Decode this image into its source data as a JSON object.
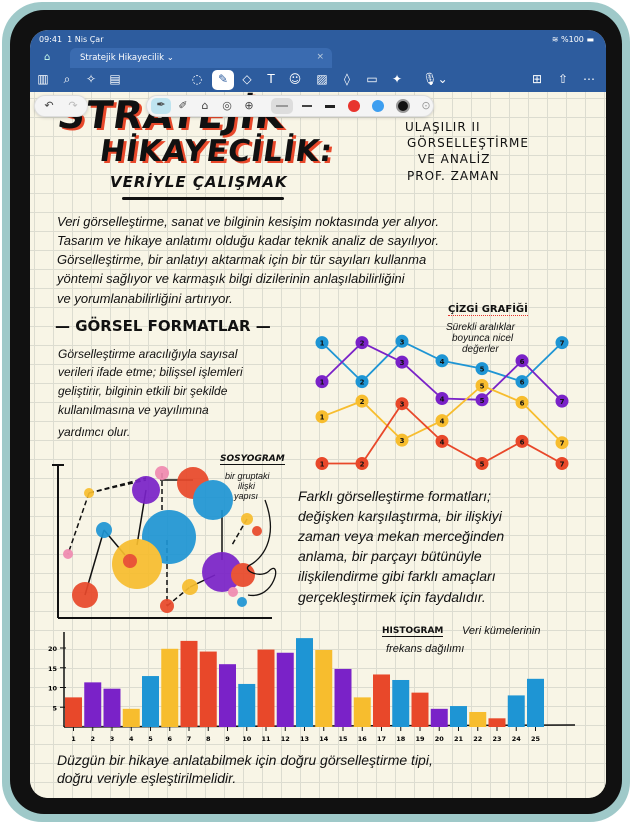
{
  "status": {
    "time": "09:41",
    "date": "1 Nis Çar",
    "battery": "%100"
  },
  "tab": {
    "title": "Stratejik Hikayecilik ⌄",
    "close": "×"
  },
  "toolbar_icons": [
    "sidebar-icon",
    "search-icon",
    "magic-icon",
    "document-icon",
    "lasso-icon",
    "pen-icon",
    "eraser-icon",
    "text-icon",
    "sticker-icon",
    "image-icon",
    "shapes-icon",
    "note-icon",
    "laser-icon",
    "microphone-icon",
    "add-page-icon",
    "share-icon",
    "more-icon"
  ],
  "pen_tools": {
    "colors": [
      "#e8342e",
      "#3d9ef0",
      "#111111"
    ],
    "tools": [
      "fountain-pen-icon",
      "ball-pen-icon",
      "highlighter-icon",
      "brush-icon",
      "shape-pen-icon"
    ]
  },
  "note": {
    "title1": "STRATEJİK",
    "title2": "HİKAYECİLİK:",
    "subtitle": "VERİYLE ÇALIŞMAK",
    "course": [
      "ULAŞILIR II",
      "GÖRSELLEŞTİRME",
      "VE ANALİZ",
      "PROF. ZAMAN"
    ],
    "intro": [
      "Veri görselleştirme, sanat ve bilginin kesişim noktasında yer alıyor.",
      "Tasarım ve hikaye anlatımı olduğu kadar teknik analiz de sayılıyor.",
      "Görselleştirme, bir anlatıyı aktarmak için bir tür sayıları kullanma",
      "yöntemi sağlıyor ve karmaşık bilgi dizilerinin anlaşılabilirliğini",
      "ve yorumlanabilirliğini artırıyor."
    ],
    "section": "— GÖRSEL FORMATLAR —",
    "left_para": [
      "Görselleştirme aracılığıyla sayısal",
      "verileri ifade etme; bilişsel işlemleri",
      "geliştirir, bilginin etkili bir şekilde",
      "kullanılmasına ve yayılımına",
      "yardımcı olur."
    ],
    "line_title": "ÇİZGİ GRAFİĞİ",
    "line_sub": [
      "Sürekli aralıklar",
      "boyunca nicel",
      "değerler"
    ],
    "socio_title": "SOSYOGRAM",
    "socio_sub": [
      "bir gruptaki",
      "ilişki",
      "yapısı"
    ],
    "right_para": [
      "Farklı görselleştirme formatları;",
      "değişken karşılaştırma, bir ilişkiyi",
      "zaman veya mekan merceğinden",
      "anlama, bir parçayı bütünüyle",
      "ilişkilendirme gibi farklı amaçları",
      "gerçekleştirmek için faydalıdır."
    ],
    "hist_title": "HISTOGRAM",
    "hist_sub1": "Veri kümelerinin",
    "hist_sub2": "frekans dağılımı",
    "closing": [
      "Düzgün bir hikaye anlatabilmek için doğru görselleştirme tipi,",
      "doğru veriyle eşleştirilmelidir."
    ]
  },
  "chart_data": [
    {
      "type": "line",
      "title": "ÇİZGİ GRAFİĞİ",
      "x": [
        1,
        2,
        3,
        4,
        5,
        6,
        7
      ],
      "series": [
        {
          "color": "#1e95d4",
          "values": [
            9.8,
            6.8,
            9.9,
            8.4,
            7.8,
            6.8,
            9.8
          ]
        },
        {
          "color": "#7a22c8",
          "values": [
            6.8,
            9.8,
            8.3,
            5.5,
            5.4,
            8.4,
            5.3
          ]
        },
        {
          "color": "#f7bd2e",
          "values": [
            4.1,
            5.3,
            2.3,
            3.8,
            6.5,
            5.2,
            2.1
          ]
        },
        {
          "color": "#e8482a",
          "values": [
            0.5,
            0.5,
            5.1,
            2.2,
            0.5,
            2.2,
            0.5
          ]
        }
      ]
    },
    {
      "type": "bar",
      "title": "HISTOGRAM",
      "categories": [
        "1",
        "2",
        "3",
        "4",
        "5",
        "6",
        "7",
        "8",
        "9",
        "10",
        "11",
        "12",
        "13",
        "14",
        "15",
        "16",
        "17",
        "18",
        "19",
        "20",
        "21",
        "22",
        "23",
        "24",
        "25"
      ],
      "values": [
        7.5,
        11.3,
        9.7,
        4.6,
        12.9,
        19.8,
        21.8,
        19.1,
        15.9,
        10.9,
        19.6,
        18.8,
        22.5,
        19.5,
        14.7,
        7.5,
        13.3,
        11.9,
        8.7,
        4.6,
        5.3,
        3.8,
        2.2,
        8,
        12.2
      ],
      "colors": [
        "#e8482a",
        "#7a22c8",
        "#7a22c8",
        "#f7bd2e",
        "#1e95d4",
        "#f7bd2e",
        "#e8482a",
        "#e8482a",
        "#7a22c8",
        "#1e95d4",
        "#e8482a",
        "#7a22c8",
        "#1e95d4",
        "#f7bd2e",
        "#7a22c8",
        "#f7bd2e",
        "#e8482a",
        "#1e95d4",
        "#e8482a",
        "#7a22c8",
        "#1e95d4",
        "#f7bd2e",
        "#e8482a",
        "#1e95d4",
        "#1e95d4"
      ],
      "yticks": [
        "5",
        "10",
        "15",
        "20"
      ],
      "ylim": [
        0,
        24
      ]
    }
  ]
}
